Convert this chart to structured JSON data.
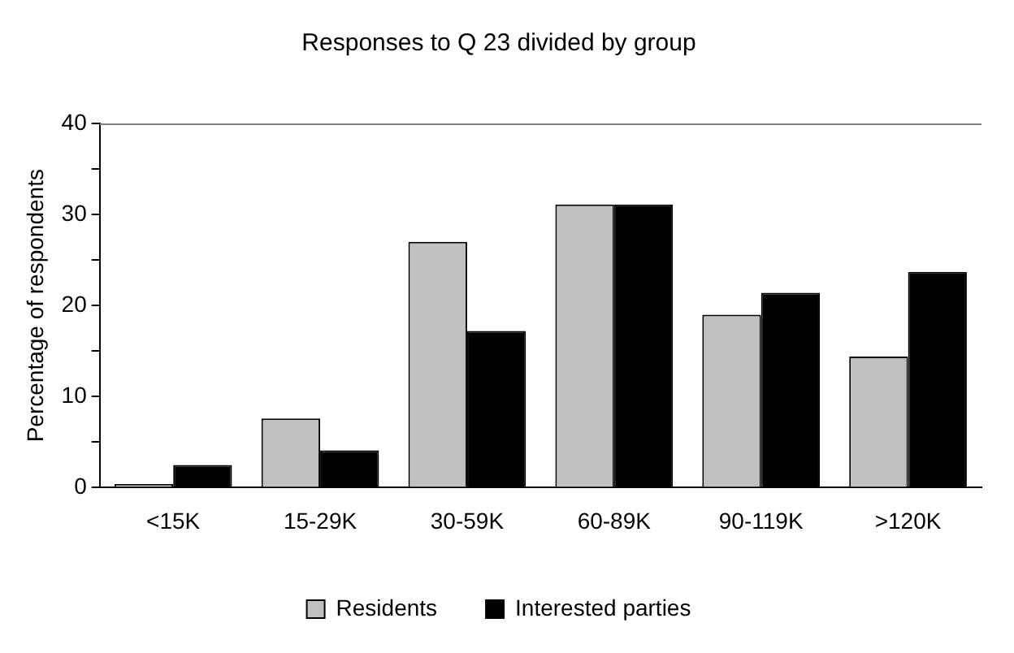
{
  "chart_data": {
    "type": "bar",
    "title": "Responses to Q 23 divided by group",
    "ylabel": "Percentage of respondents",
    "categories": [
      "<15K",
      "15-29K",
      "30-59K",
      "60-89K",
      "90-119K",
      ">120K"
    ],
    "series": [
      {
        "name": "Residents",
        "color": "#c0c0c0",
        "values": [
          0.4,
          7.6,
          27.0,
          31.1,
          19.0,
          14.4
        ]
      },
      {
        "name": "Interested parties",
        "color": "#000000",
        "values": [
          2.5,
          4.1,
          17.2,
          31.1,
          21.4,
          23.7
        ]
      }
    ],
    "ylim": [
      0,
      40
    ],
    "yticks": [
      0,
      {
        "value": 5,
        "label": null
      },
      10,
      {
        "value": 15,
        "label": null
      },
      20,
      {
        "value": 25,
        "label": null
      },
      30,
      {
        "value": 35,
        "label": null
      },
      40
    ],
    "grid": false,
    "legend": "bottom"
  }
}
